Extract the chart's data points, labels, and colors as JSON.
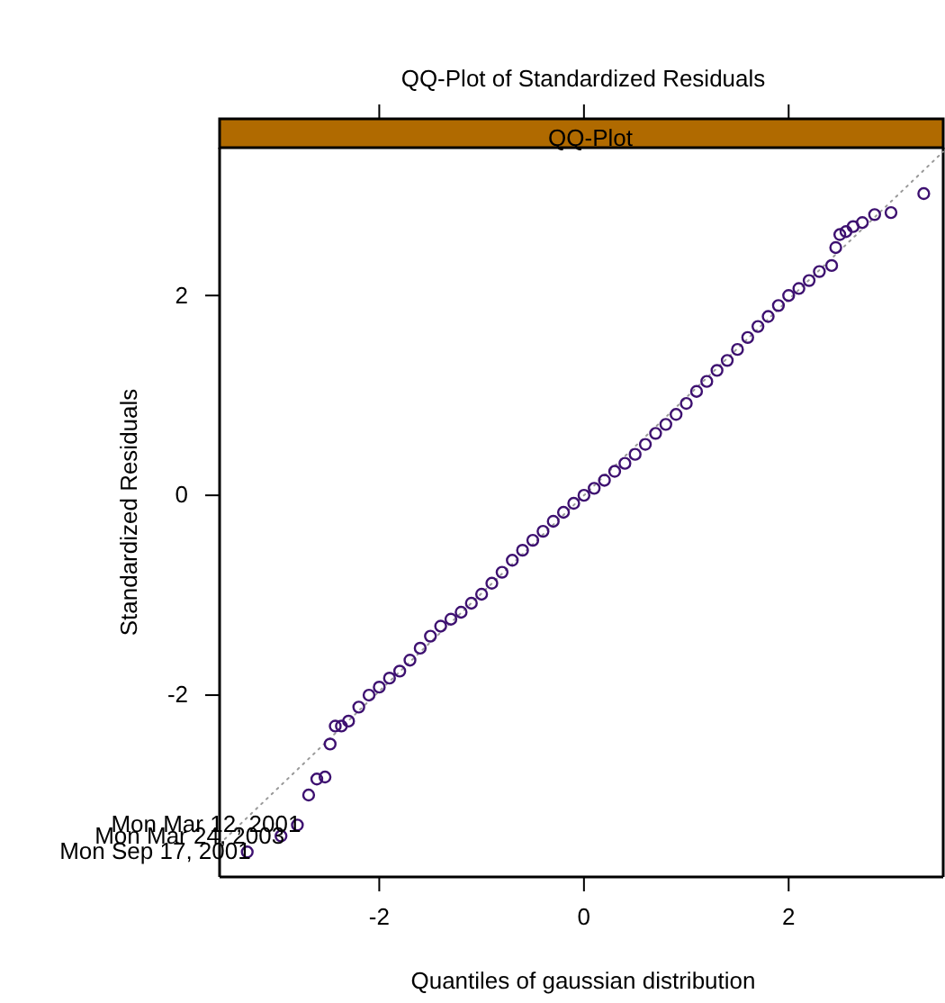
{
  "chart_data": {
    "type": "scatter",
    "title": "QQ-Plot of Standardized Residuals",
    "xlabel": "Quantiles of gaussian distribution",
    "ylabel": "Standardized Residuals",
    "annotations": [
      "QQ-Plot",
      {
        "text": "Mon Mar 12, 2001",
        "x": -2.8,
        "y": -3.3
      },
      {
        "text": "Mon Mar 24, 2003",
        "x": -2.96,
        "y": -3.41
      },
      {
        "text": "Mon Sep 17, 2001",
        "x": -3.29,
        "y": -3.57
      }
    ],
    "xlim": [
      -3.56,
      3.51
    ],
    "ylim": [
      -3.82,
      3.48
    ],
    "xticks": [
      -2,
      0,
      2
    ],
    "yticks": [
      -2,
      0,
      2
    ],
    "grid": false,
    "series": [
      {
        "type": "scatter",
        "marker": "circle",
        "color": "#3d1070",
        "x": [
          -3.29,
          -2.96,
          -2.8,
          -2.69,
          -2.61,
          -2.53,
          -2.48,
          -2.43,
          -2.37,
          -2.3,
          -2.2,
          -2.1,
          -2.0,
          -1.9,
          -1.8,
          -1.7,
          -1.6,
          -1.5,
          -1.4,
          -1.3,
          -1.2,
          -1.1,
          -1.0,
          -0.9,
          -0.8,
          -0.7,
          -0.6,
          -0.5,
          -0.4,
          -0.3,
          -0.2,
          -0.1,
          0,
          0.1,
          0.2,
          0.3,
          0.4,
          0.5,
          0.6,
          0.7,
          0.8,
          0.9,
          1.0,
          1.1,
          1.2,
          1.3,
          1.4,
          1.5,
          1.6,
          1.7,
          1.8,
          1.9,
          2.0,
          2.1,
          2.2,
          2.3,
          2.42,
          2.46,
          2.5,
          2.56,
          2.63,
          2.72,
          2.84,
          3.0,
          3.32
        ],
        "values": [
          -3.57,
          -3.41,
          -3.3,
          -3.0,
          -2.84,
          -2.82,
          -2.49,
          -2.31,
          -2.31,
          -2.26,
          -2.12,
          -2.0,
          -1.92,
          -1.83,
          -1.76,
          -1.65,
          -1.53,
          -1.41,
          -1.31,
          -1.24,
          -1.17,
          -1.08,
          -0.99,
          -0.88,
          -0.77,
          -0.65,
          -0.55,
          -0.45,
          -0.36,
          -0.26,
          -0.17,
          -0.08,
          0,
          0.07,
          0.15,
          0.24,
          0.32,
          0.41,
          0.51,
          0.62,
          0.71,
          0.81,
          0.92,
          1.04,
          1.14,
          1.25,
          1.35,
          1.46,
          1.58,
          1.69,
          1.79,
          1.9,
          2.0,
          2.07,
          2.15,
          2.24,
          2.3,
          2.48,
          2.61,
          2.64,
          2.69,
          2.73,
          2.81,
          2.83,
          3.02
        ]
      },
      {
        "type": "line",
        "marker": "none",
        "color": "#999999",
        "line_style": "dotted",
        "x": [
          -3.56,
          3.51
        ],
        "values": [
          -3.49,
          3.44
        ]
      }
    ]
  }
}
